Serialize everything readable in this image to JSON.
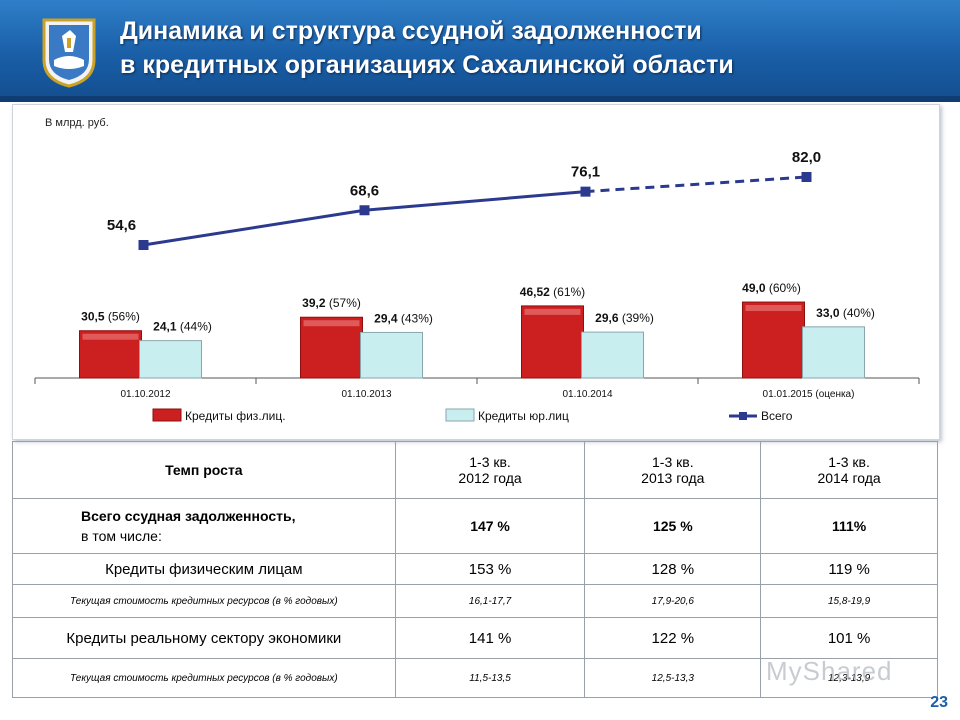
{
  "header": {
    "title_line1": "Динамика и структура ссудной задолженности",
    "title_line2": "в кредитных организациях Сахалинской области"
  },
  "chart_data": {
    "type": "bar",
    "unit_label": "В млрд. руб.",
    "categories": [
      "01.10.2012",
      "01.10.2013",
      "01.10.2014",
      "01.01.2015 (оценка)"
    ],
    "series": [
      {
        "name": "Кредиты физ.лиц.",
        "values": [
          30.5,
          39.2,
          46.52,
          49.0
        ],
        "labels_value": [
          "30,5",
          "39,2",
          "46,52",
          "49,0"
        ],
        "labels_share": [
          "(56%)",
          "(57%)",
          "(61%)",
          "(60%)"
        ],
        "color": "#cc1f1f"
      },
      {
        "name": "Кредиты юр.лиц",
        "values": [
          24.1,
          29.4,
          29.6,
          33.0
        ],
        "labels_value": [
          "24,1",
          "29,4",
          "29,6",
          "33,0"
        ],
        "labels_share": [
          "(44%)",
          "(43%)",
          "(39%)",
          "(40%)"
        ],
        "color": "#c9eef0"
      },
      {
        "name": "Всего",
        "type": "line",
        "values": [
          54.6,
          68.6,
          76.1,
          82.0
        ],
        "labels_value": [
          "54,6",
          "68,6",
          "76,1",
          "82,0"
        ],
        "color": "#2b3a8f",
        "last_segment_style": "dashed"
      }
    ],
    "legend_position": "bottom",
    "grid": false
  },
  "table": {
    "header": {
      "label": "Темп роста",
      "cols": [
        {
          "line1": "1-3 кв.",
          "line2": "2012 года"
        },
        {
          "line1": "1-3 кв.",
          "line2": "2013 года"
        },
        {
          "line1": "1-3 кв.",
          "line2": "2014 года"
        }
      ]
    },
    "total": {
      "label_line1": "Всего ссудная задолженность,",
      "label_line2": "в том числе:",
      "values": [
        "147 %",
        "125 %",
        "111%"
      ]
    },
    "individuals": {
      "label": "Кредиты физическим лицам",
      "values": [
        "153 %",
        "128 %",
        "119 %"
      ]
    },
    "individuals_cost": {
      "label": "Текущая стоимость кредитных ресурсов (в % годовых)",
      "values": [
        "16,1-17,7",
        "17,9-20,6",
        "15,8-19,9"
      ]
    },
    "real_sector": {
      "label": "Кредиты реальному сектору экономики",
      "values": [
        "141 %",
        "122 %",
        "101 %"
      ]
    },
    "real_sector_cost": {
      "label": "Текущая стоимость кредитных ресурсов (в % годовых)",
      "values": [
        "11,5-13,5",
        "12,5-13,3",
        "12,3-13,9"
      ]
    }
  },
  "page_number": "23",
  "watermark": "MyShared"
}
